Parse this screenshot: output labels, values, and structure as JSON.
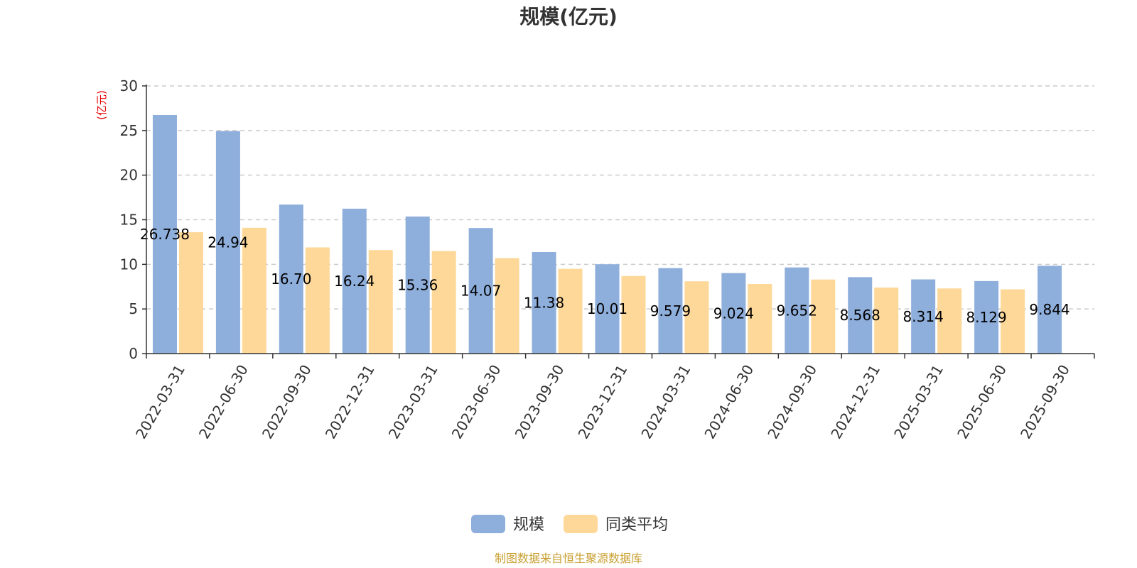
{
  "chart_data": {
    "type": "bar",
    "title": "规模(亿元)",
    "ylabel": "(亿元)",
    "xlabel": "",
    "ylim": [
      0,
      30
    ],
    "yticks": [
      0,
      5,
      10,
      15,
      20,
      25,
      30
    ],
    "grid": true,
    "categories": [
      "2022-03-31",
      "2022-06-30",
      "2022-09-30",
      "2022-12-31",
      "2023-03-31",
      "2023-06-30",
      "2023-09-30",
      "2023-12-31",
      "2024-03-31",
      "2024-06-30",
      "2024-09-30",
      "2024-12-31",
      "2025-03-31",
      "2025-06-30",
      "2025-09-30"
    ],
    "series": [
      {
        "name": "规模",
        "color": "#8eaedb",
        "values": [
          26.738,
          24.94,
          16.7,
          16.24,
          15.36,
          14.07,
          11.38,
          10.01,
          9.579,
          9.024,
          9.652,
          8.568,
          8.314,
          8.129,
          9.844
        ],
        "labels": [
          "26.738",
          "24.94",
          "16.70",
          "16.24",
          "15.36",
          "14.07",
          "11.38",
          "10.01",
          "9.579",
          "9.024",
          "9.652",
          "8.568",
          "8.314",
          "8.129",
          "9.844"
        ]
      },
      {
        "name": "同类平均",
        "color": "#fdd898",
        "values": [
          13.6,
          14.1,
          11.9,
          11.6,
          11.5,
          10.7,
          9.5,
          8.7,
          8.1,
          7.8,
          8.3,
          7.4,
          7.3,
          7.2,
          null
        ]
      }
    ],
    "legend_position": "bottom-center",
    "source": "制图数据来自恒生聚源数据库"
  }
}
